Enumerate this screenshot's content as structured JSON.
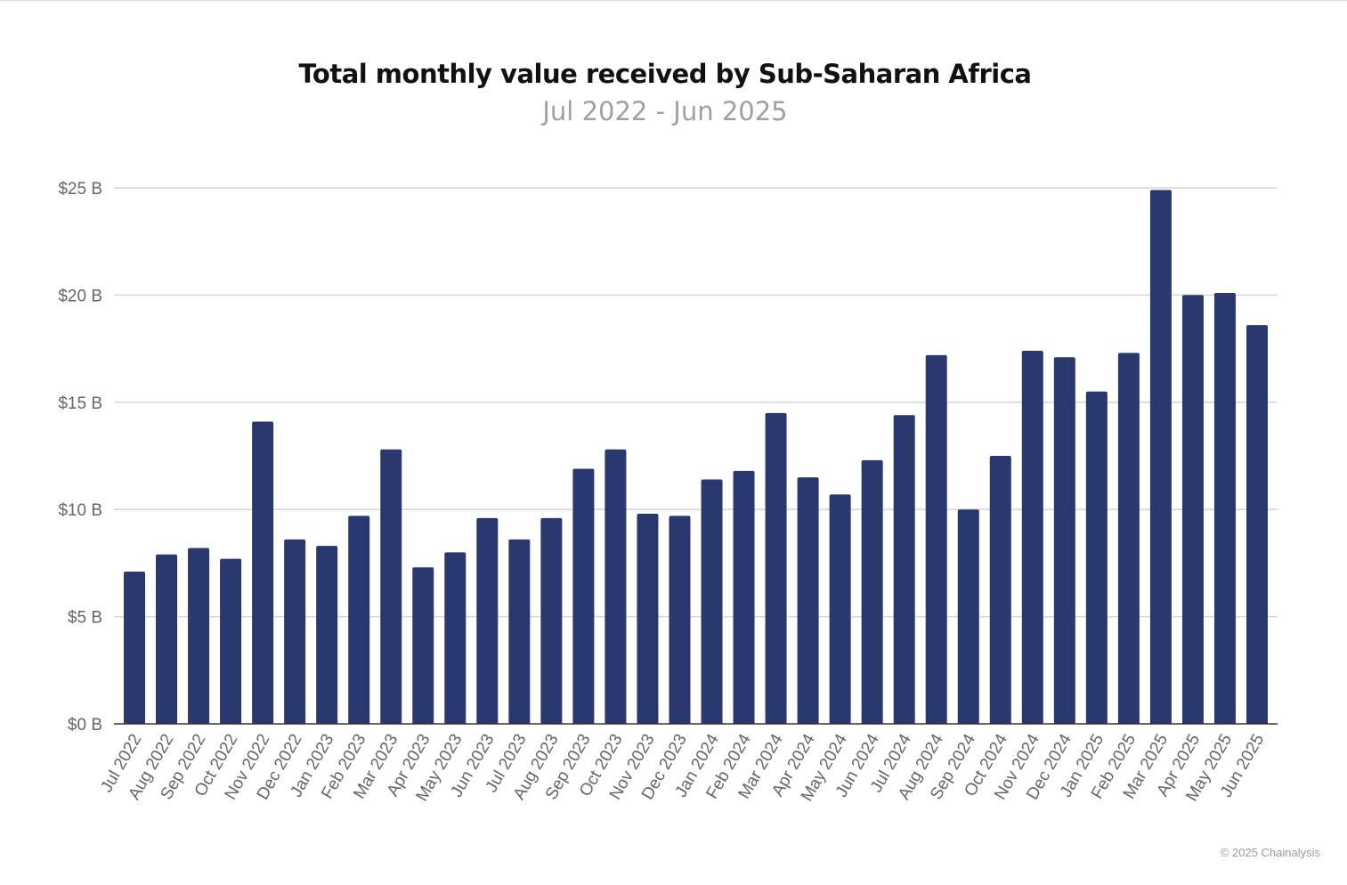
{
  "chart_data": {
    "type": "bar",
    "title": "Total monthly value received by Sub-Saharan Africa",
    "subtitle": "Jul 2022 - Jun 2025",
    "xlabel": "",
    "ylabel": "",
    "ylim": [
      0,
      25
    ],
    "yticks": [
      "$0 B",
      "$5 B",
      "$10 B",
      "$15 B",
      "$20 B",
      "$25 B"
    ],
    "grid": true,
    "bar_color": "#29386f",
    "categories": [
      "Jul 2022",
      "Aug 2022",
      "Sep 2022",
      "Oct 2022",
      "Nov 2022",
      "Dec 2022",
      "Jan 2023",
      "Feb 2023",
      "Mar 2023",
      "Apr 2023",
      "May 2023",
      "Jun 2023",
      "Jul 2023",
      "Aug 2023",
      "Sep 2023",
      "Oct 2023",
      "Nov 2023",
      "Dec 2023",
      "Jan 2024",
      "Feb 2024",
      "Mar 2024",
      "Apr 2024",
      "May 2024",
      "Jun 2024",
      "Jul 2024",
      "Aug 2024",
      "Sep 2024",
      "Oct 2024",
      "Nov 2024",
      "Dec 2024",
      "Jan 2025",
      "Feb 2025",
      "Mar 2025",
      "Apr 2025",
      "May 2025",
      "Jun 2025"
    ],
    "values": [
      7.1,
      7.9,
      8.2,
      7.7,
      14.1,
      8.6,
      8.3,
      9.7,
      12.8,
      7.3,
      8.0,
      9.6,
      8.6,
      9.6,
      11.9,
      12.8,
      9.8,
      9.7,
      11.4,
      11.8,
      14.5,
      11.5,
      10.7,
      12.3,
      14.4,
      17.2,
      10.0,
      12.5,
      17.4,
      17.1,
      15.5,
      17.3,
      24.9,
      20.0,
      20.1,
      18.6
    ]
  },
  "credit": "© 2025 Chainalysis"
}
